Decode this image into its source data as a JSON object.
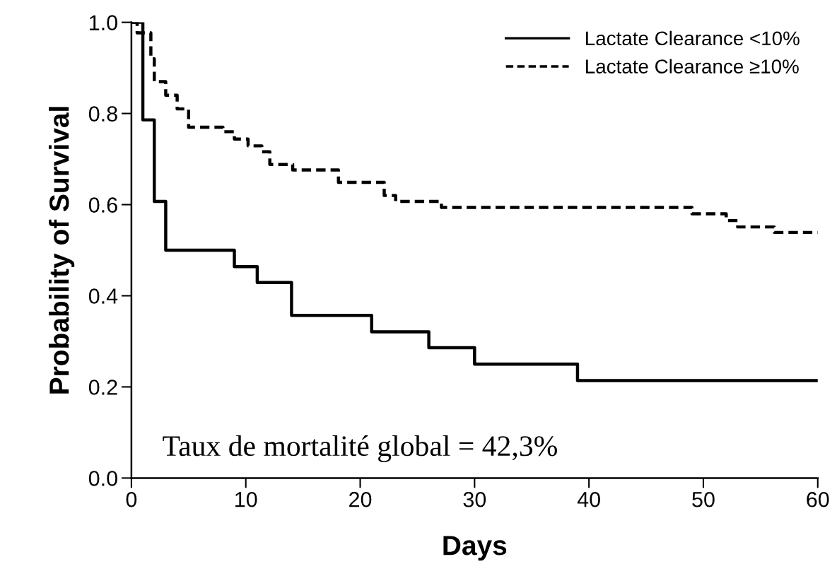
{
  "chart_data": {
    "type": "step",
    "xlabel": "Days",
    "ylabel": "Probability of Survival",
    "xlim": [
      0,
      60
    ],
    "ylim": [
      0,
      1
    ],
    "xticks": [
      0,
      10,
      20,
      30,
      40,
      50,
      60
    ],
    "yticks": [
      {
        "value": 0,
        "label": "0.0"
      },
      {
        "value": 0.2,
        "label": "0.2"
      },
      {
        "value": 0.4,
        "label": "0.4"
      },
      {
        "value": 0.6,
        "label": "0.6"
      },
      {
        "value": 0.8,
        "label": "0.8"
      },
      {
        "value": 1,
        "label": "1.0"
      }
    ],
    "grid": false,
    "legend": "top right",
    "marker": "none",
    "annotations": [
      "Taux de mortalité global = 42,3%"
    ],
    "series": [
      {
        "name": "Lactate Clearance <10%",
        "color": "#000000",
        "line_style": "solid",
        "x": [
          0,
          1,
          2,
          3,
          9,
          11,
          14,
          21,
          26,
          30,
          39,
          60
        ],
        "values": [
          1.0,
          0.786,
          0.607,
          0.5,
          0.464,
          0.429,
          0.357,
          0.321,
          0.286,
          0.25,
          0.214,
          0.214
        ]
      },
      {
        "name": "Lactate Clearance ≥10%",
        "color": "#000000",
        "line_style": "dashed",
        "x": [
          0,
          0.5,
          1.7,
          2,
          3,
          4,
          5,
          8,
          9,
          10.2,
          11.4,
          12.1,
          14.1,
          18.1,
          22.1,
          23.1,
          27.1,
          49,
          52,
          53,
          56.2,
          60
        ],
        "values": [
          1.0,
          0.977,
          0.92,
          0.87,
          0.84,
          0.81,
          0.77,
          0.76,
          0.744,
          0.729,
          0.716,
          0.688,
          0.676,
          0.649,
          0.62,
          0.607,
          0.594,
          0.58,
          0.565,
          0.551,
          0.539,
          0.539
        ]
      }
    ]
  }
}
